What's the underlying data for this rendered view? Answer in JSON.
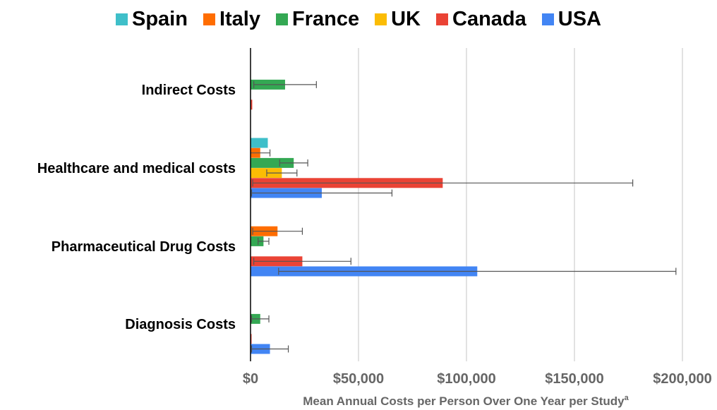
{
  "colors": {
    "Spain": "#3fbfc9",
    "Italy": "#ff6d01",
    "France": "#34a853",
    "UK": "#fbbc04",
    "Canada": "#ea4335",
    "USA": "#4285f4"
  },
  "chart_data": {
    "type": "bar",
    "orientation": "horizontal",
    "legend_position": "top",
    "grid": true,
    "categories": [
      "Indirect Costs",
      "Healthcare and medical costs",
      "Pharmaceutical Drug Costs",
      "Diagnosis Costs"
    ],
    "series": [
      {
        "name": "Spain",
        "values": [
          null,
          8000,
          null,
          null
        ],
        "error": [
          null,
          0,
          null,
          null
        ]
      },
      {
        "name": "Italy",
        "values": [
          null,
          4500,
          12500,
          null
        ],
        "error": [
          null,
          4500,
          11500,
          null
        ]
      },
      {
        "name": "France",
        "values": [
          16000,
          20000,
          6000,
          4500
        ],
        "error": [
          14500,
          6500,
          2500,
          4000
        ]
      },
      {
        "name": "UK",
        "values": [
          null,
          14500,
          null,
          null
        ],
        "error": [
          null,
          7000,
          null,
          null
        ]
      },
      {
        "name": "Canada",
        "values": [
          800,
          89000,
          24000,
          300
        ],
        "error": [
          0,
          88000,
          22500,
          0
        ]
      },
      {
        "name": "USA",
        "values": [
          null,
          33000,
          105000,
          9000
        ],
        "error": [
          null,
          32500,
          92000,
          8500
        ]
      }
    ],
    "xlim": [
      0,
      200000
    ],
    "xticks": [
      "$0",
      "$50,000",
      "$100,000",
      "$150,000",
      "$200,000"
    ],
    "xlabel": "Mean Annual Costs per Person Over One Year per Study",
    "xlabel_superscript": "a",
    "ylabel": "",
    "title": ""
  }
}
